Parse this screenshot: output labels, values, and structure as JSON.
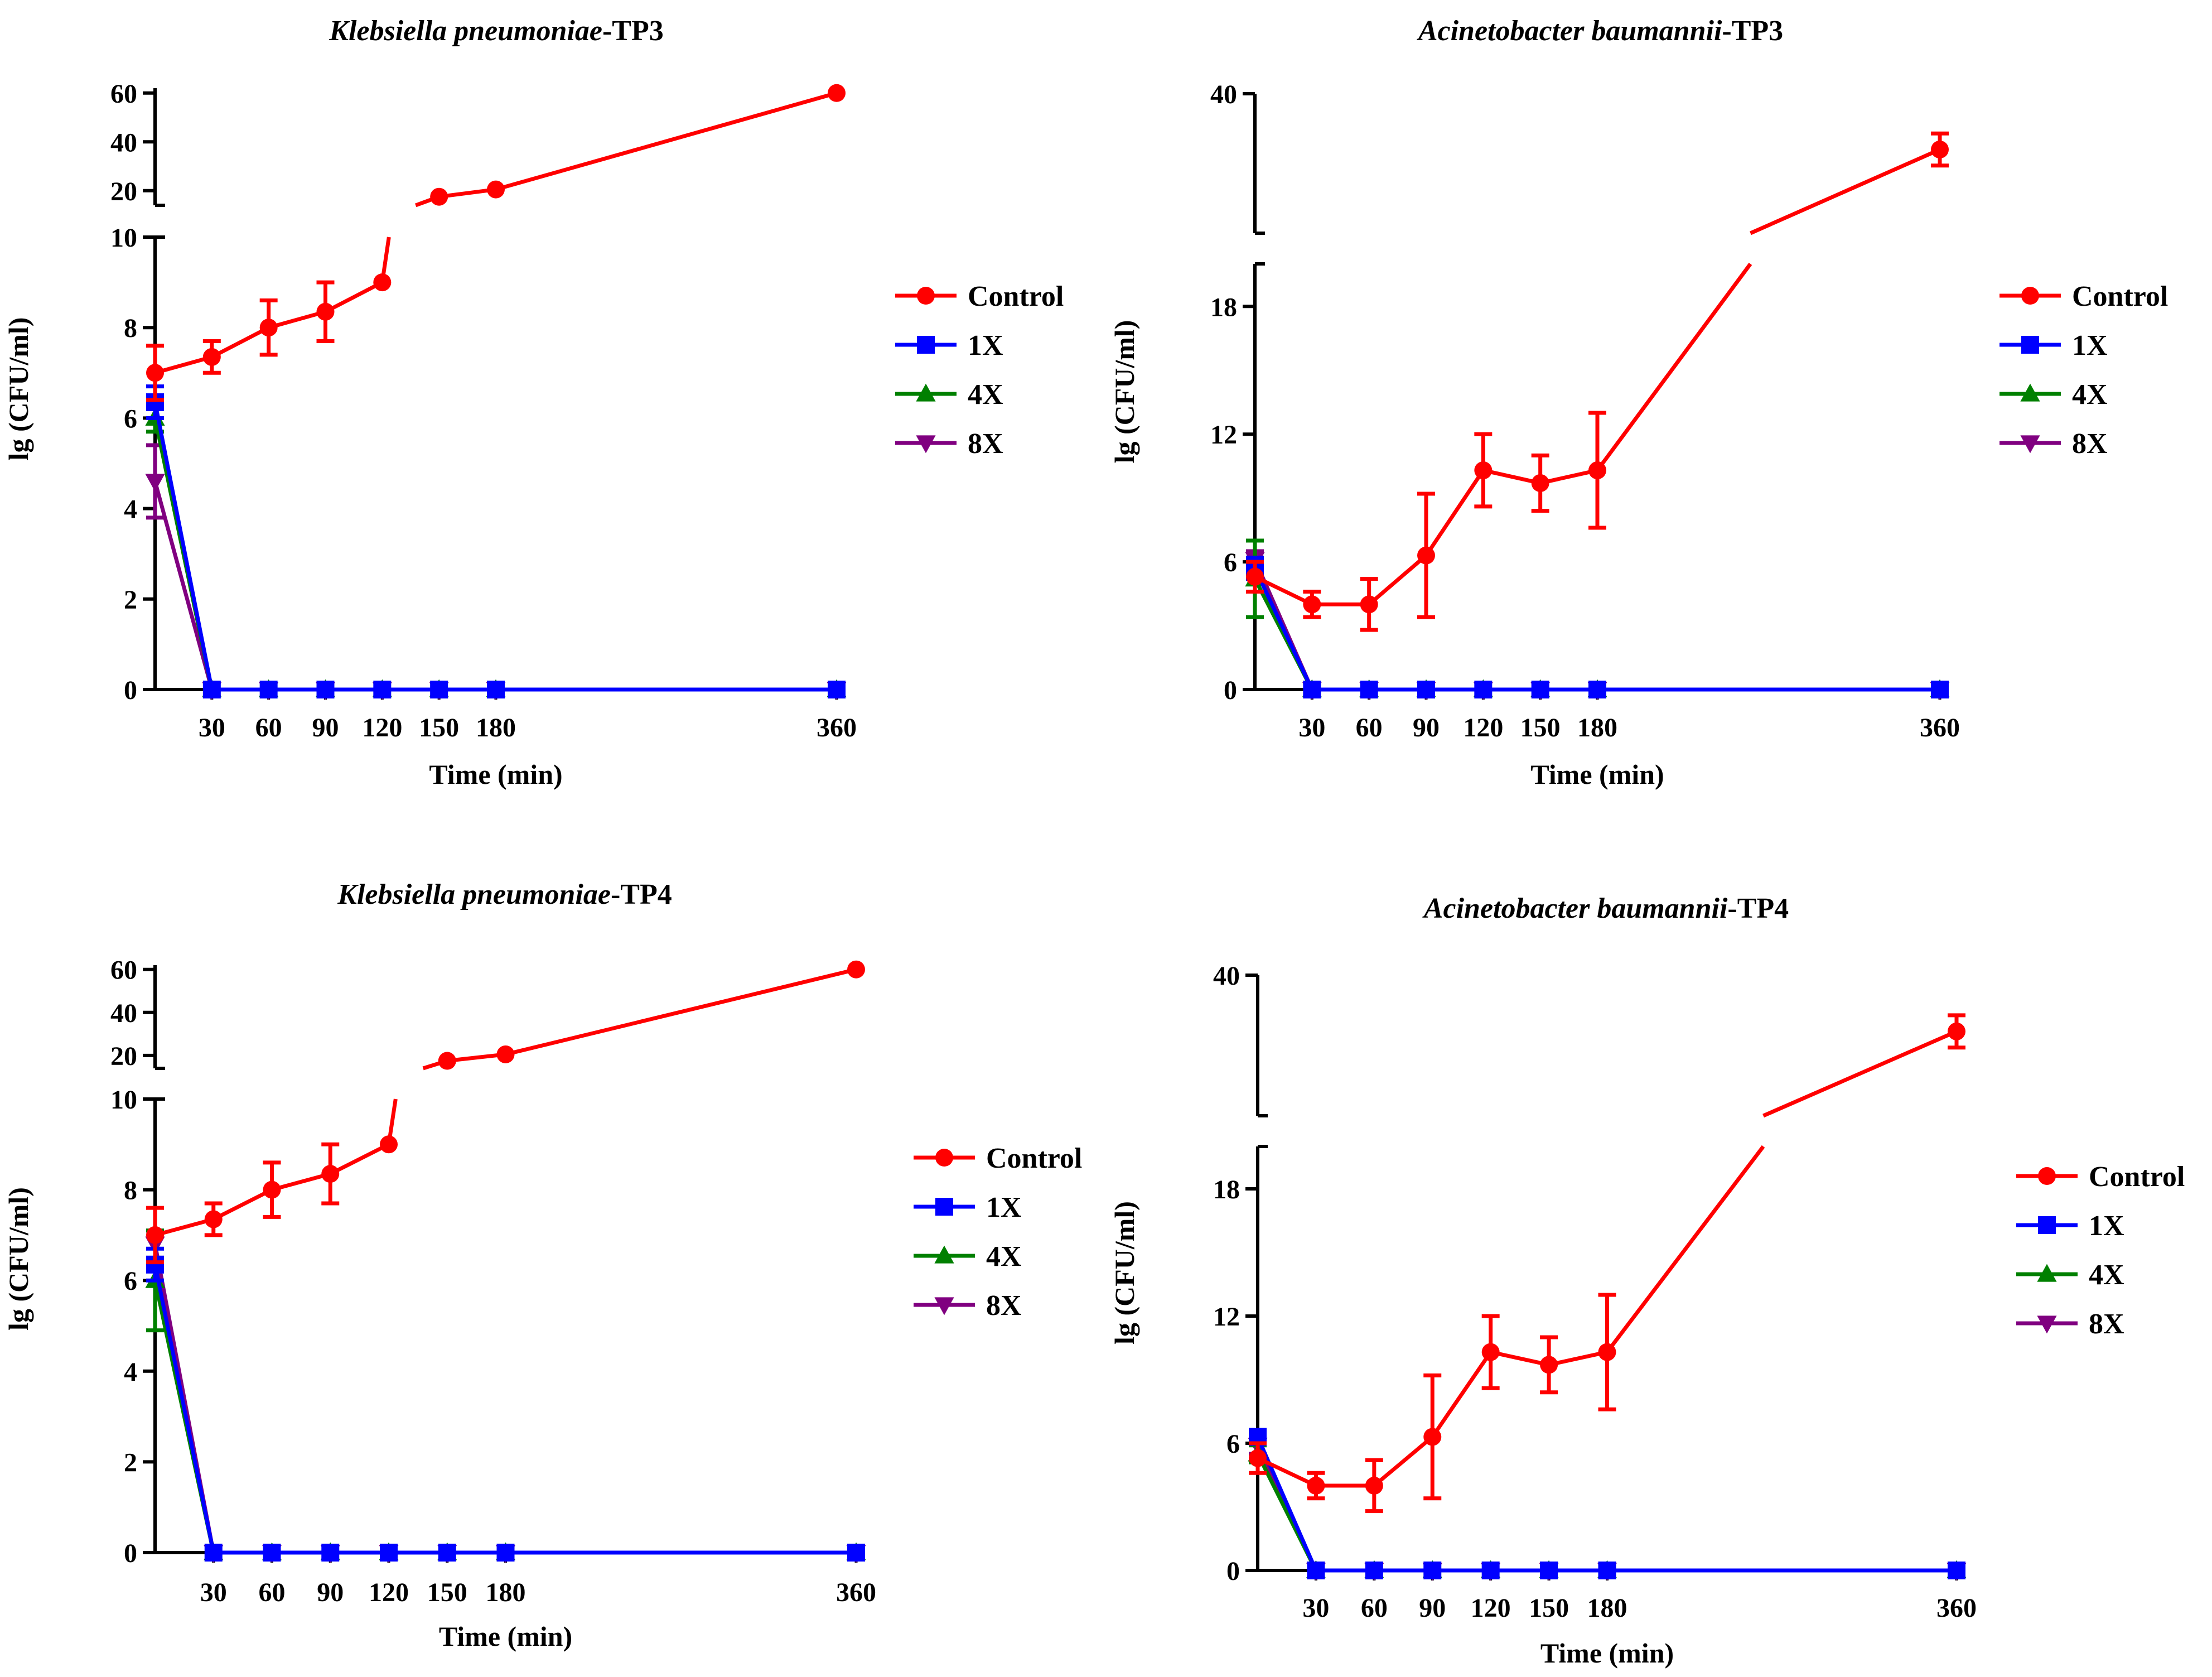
{
  "figure": {
    "x_axis_label": "Time (min)",
    "y_axis_label": "lg (CFU/ml)",
    "series_names": [
      "Control",
      "1X",
      "4X",
      "8X"
    ],
    "colors": {
      "Control": "#ff0000",
      "1X": "#0000ff",
      "4X": "#008000",
      "8X": "#800080"
    }
  },
  "chart_data": [
    {
      "type": "line",
      "title_italic": "Klebsiella pneumoniae",
      "title_suffix": "-TP3",
      "xlabel": "Time (min)",
      "ylabel": "lg (CFU/ml)",
      "x_ticks": [
        30,
        60,
        90,
        120,
        150,
        180,
        360
      ],
      "x_tick_labels": [
        "30",
        "60",
        "90",
        "120",
        "150",
        "180",
        "360"
      ],
      "lower_ylim": [
        0,
        10
      ],
      "lower_y_ticks": [
        0,
        2,
        4,
        6,
        8,
        10
      ],
      "upper_ylim": [
        14,
        62
      ],
      "upper_y_ticks": [
        20,
        40,
        60
      ],
      "series": [
        {
          "name": "Control",
          "x": [
            0,
            30,
            60,
            90,
            120,
            150,
            180,
            360
          ],
          "y": [
            7.0,
            7.35,
            8.0,
            8.35,
            9.0,
            17.5,
            20.5,
            60.0
          ],
          "err": [
            0.6,
            0.35,
            0.6,
            0.65,
            0,
            0,
            0,
            0
          ]
        },
        {
          "name": "1X",
          "x": [
            0,
            30,
            60,
            90,
            120,
            150,
            180,
            360
          ],
          "y": [
            6.35,
            0,
            0,
            0,
            0,
            0,
            0,
            0
          ],
          "err": [
            0.35,
            0,
            0,
            0,
            0,
            0,
            0,
            0
          ]
        },
        {
          "name": "4X",
          "x": [
            0,
            30,
            60,
            90,
            120,
            150,
            180,
            360
          ],
          "y": [
            6.0,
            0,
            0,
            0,
            0,
            0,
            0,
            0
          ],
          "err": [
            0.3,
            0,
            0,
            0,
            0,
            0,
            0,
            0
          ]
        },
        {
          "name": "8X",
          "x": [
            0,
            30,
            60,
            90,
            120,
            150,
            180,
            360
          ],
          "y": [
            4.6,
            0,
            0,
            0,
            0,
            0,
            0,
            0
          ],
          "err": [
            0.8,
            0,
            0,
            0,
            0,
            0,
            0,
            0
          ]
        }
      ]
    },
    {
      "type": "line",
      "title_italic": "Acinetobacter baumannii",
      "title_suffix": "-TP3",
      "xlabel": "Time (min)",
      "ylabel": "lg (CFU/ml)",
      "x_ticks": [
        30,
        60,
        90,
        120,
        150,
        180,
        360
      ],
      "x_tick_labels": [
        "30",
        "60",
        "90",
        "120",
        "150",
        "180",
        "360"
      ],
      "lower_ylim": [
        0,
        20
      ],
      "lower_y_ticks": [
        0,
        6,
        12,
        18
      ],
      "upper_ylim": [
        20,
        40
      ],
      "upper_y_ticks": [
        40
      ],
      "series": [
        {
          "name": "Control",
          "x": [
            0,
            30,
            60,
            90,
            120,
            150,
            180,
            360
          ],
          "y": [
            5.3,
            4.0,
            4.0,
            6.3,
            10.3,
            9.7,
            10.3,
            32.0
          ],
          "err": [
            0.7,
            0.6,
            1.2,
            2.9,
            1.7,
            1.3,
            2.7,
            2.3
          ]
        },
        {
          "name": "1X",
          "x": [
            0,
            30,
            60,
            90,
            120,
            150,
            180,
            360
          ],
          "y": [
            5.7,
            0,
            0,
            0,
            0,
            0,
            0,
            0
          ],
          "err": [
            0.5,
            0,
            0,
            0,
            0,
            0,
            0,
            0
          ]
        },
        {
          "name": "4X",
          "x": [
            0,
            30,
            60,
            90,
            120,
            150,
            180,
            360
          ],
          "y": [
            5.2,
            0,
            0,
            0,
            0,
            0,
            0,
            0
          ],
          "err": [
            1.8,
            0,
            0,
            0,
            0,
            0,
            0,
            0
          ]
        },
        {
          "name": "8X",
          "x": [
            0,
            30,
            60,
            90,
            120,
            150,
            180,
            360
          ],
          "y": [
            6.1,
            0,
            0,
            0,
            0,
            0,
            0,
            0
          ],
          "err": [
            0.4,
            0,
            0,
            0,
            0,
            0,
            0,
            0
          ]
        }
      ]
    },
    {
      "type": "line",
      "title_italic": "Klebsiella pneumoniae",
      "title_suffix": "-TP4",
      "xlabel": "Time (min)",
      "ylabel": "lg (CFU/ml)",
      "x_ticks": [
        30,
        60,
        90,
        120,
        150,
        180,
        360
      ],
      "x_tick_labels": [
        "30",
        "60",
        "90",
        "120",
        "150",
        "180",
        "360"
      ],
      "lower_ylim": [
        0,
        10
      ],
      "lower_y_ticks": [
        0,
        2,
        4,
        6,
        8,
        10
      ],
      "upper_ylim": [
        14,
        62
      ],
      "upper_y_ticks": [
        20,
        40,
        60
      ],
      "series": [
        {
          "name": "Control",
          "x": [
            0,
            30,
            60,
            90,
            120,
            150,
            180,
            360
          ],
          "y": [
            7.0,
            7.35,
            8.0,
            8.35,
            9.0,
            17.5,
            20.5,
            60.0
          ],
          "err": [
            0.6,
            0.35,
            0.6,
            0.65,
            0,
            0,
            0,
            0
          ]
        },
        {
          "name": "1X",
          "x": [
            0,
            30,
            60,
            90,
            120,
            150,
            180,
            360
          ],
          "y": [
            6.35,
            0,
            0,
            0,
            0,
            0,
            0,
            0
          ],
          "err": [
            0.35,
            0,
            0,
            0,
            0,
            0,
            0,
            0
          ]
        },
        {
          "name": "4X",
          "x": [
            0,
            30,
            60,
            90,
            120,
            150,
            180,
            360
          ],
          "y": [
            6.0,
            0,
            0,
            0,
            0,
            0,
            0,
            0
          ],
          "err": [
            1.1,
            0,
            0,
            0,
            0,
            0,
            0,
            0
          ]
        },
        {
          "name": "8X",
          "x": [
            0,
            30,
            60,
            90,
            120,
            150,
            180,
            360
          ],
          "y": [
            6.8,
            0,
            0,
            0,
            0,
            0,
            0,
            0
          ],
          "err": [
            0.3,
            0,
            0,
            0,
            0,
            0,
            0,
            0
          ]
        }
      ]
    },
    {
      "type": "line",
      "title_italic": "Acinetobacter baumannii",
      "title_suffix": "-TP4",
      "xlabel": "Time (min)",
      "ylabel": "lg (CFU/ml)",
      "x_ticks": [
        30,
        60,
        90,
        120,
        150,
        180,
        360
      ],
      "x_tick_labels": [
        "30",
        "60",
        "90",
        "120",
        "150",
        "180",
        "360"
      ],
      "lower_ylim": [
        0,
        20
      ],
      "lower_y_ticks": [
        0,
        6,
        12,
        18
      ],
      "upper_ylim": [
        20,
        40
      ],
      "upper_y_ticks": [
        40
      ],
      "series": [
        {
          "name": "Control",
          "x": [
            0,
            30,
            60,
            90,
            120,
            150,
            180,
            360
          ],
          "y": [
            5.3,
            4.0,
            4.0,
            6.3,
            10.3,
            9.7,
            10.3,
            32.0
          ],
          "err": [
            0.7,
            0.6,
            1.2,
            2.9,
            1.7,
            1.3,
            2.7,
            2.3
          ]
        },
        {
          "name": "1X",
          "x": [
            0,
            30,
            60,
            90,
            120,
            150,
            180,
            360
          ],
          "y": [
            6.3,
            0,
            0,
            0,
            0,
            0,
            0,
            0
          ],
          "err": [
            0,
            0,
            0,
            0,
            0,
            0,
            0,
            0
          ]
        },
        {
          "name": "4X",
          "x": [
            0,
            30,
            60,
            90,
            120,
            150,
            180,
            360
          ],
          "y": [
            5.5,
            0,
            0,
            0,
            0,
            0,
            0,
            0
          ],
          "err": [
            0.4,
            0,
            0,
            0,
            0,
            0,
            0,
            0
          ]
        },
        {
          "name": "8X",
          "x": [
            0,
            30,
            60,
            90,
            120,
            150,
            180,
            360
          ],
          "y": [
            5.9,
            0,
            0,
            0,
            0,
            0,
            0,
            0
          ],
          "err": [
            0.4,
            0,
            0,
            0,
            0,
            0,
            0,
            0
          ]
        }
      ]
    }
  ]
}
